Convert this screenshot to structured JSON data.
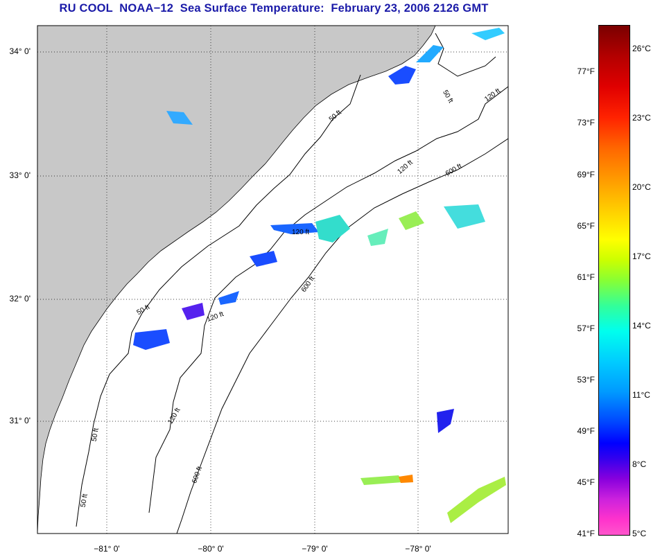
{
  "title": "RU COOL  NOAA−12  Sea Surface Temperature:  February 23, 2006 2126 GMT",
  "map": {
    "lat_labels": [
      "34° 0'",
      "33° 0'",
      "32° 0'",
      "31° 0'"
    ],
    "lon_labels": [
      "−81° 0'",
      "−80° 0'",
      "−79° 0'",
      "−78° 0'"
    ],
    "contour_labels": [
      "50 ft",
      "50 ft",
      "50 ft",
      "50 ft",
      "50 ft",
      "120 ft",
      "120 ft",
      "120 ft",
      "120 ft",
      "120 ft",
      "600 ft",
      "600 ft",
      "600 ft"
    ],
    "colors": {
      "land": "#c8c8c8",
      "water": "#ffffff",
      "grid": "#000000"
    }
  },
  "colorbar": {
    "fahrenheit": [
      "77°F",
      "73°F",
      "69°F",
      "65°F",
      "61°F",
      "57°F",
      "53°F",
      "49°F",
      "45°F",
      "41°F"
    ],
    "celsius": [
      "26°C",
      "23°C",
      "20°C",
      "17°C",
      "14°C",
      "11°C",
      "8°C",
      "5°C"
    ]
  }
}
